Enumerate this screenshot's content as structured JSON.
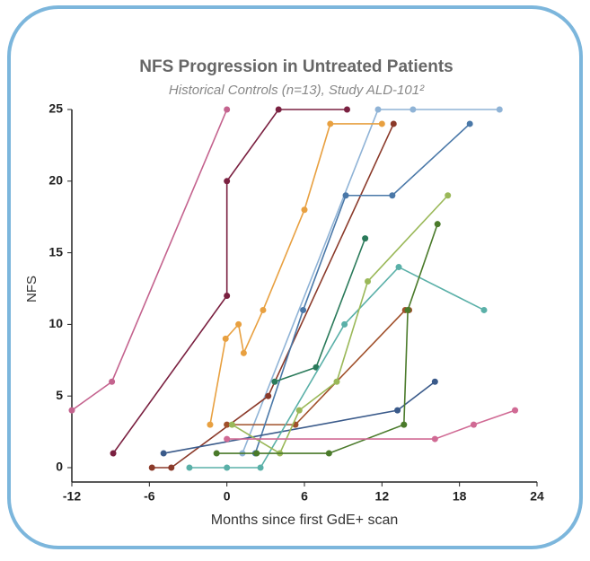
{
  "chart_data": {
    "type": "line",
    "title": "NFS Progression in Untreated Patients",
    "subtitle": "Historical Controls (n=13), Study ALD-101²",
    "x_label": "Months since first GdE+ scan",
    "y_label": "NFS",
    "xlim": [
      -12,
      24
    ],
    "xticks": [
      -12,
      -6,
      0,
      6,
      12,
      18,
      24
    ],
    "ylim": [
      0,
      25
    ],
    "yticks": [
      0,
      5,
      10,
      15,
      20,
      25
    ],
    "series": [
      {
        "color": "#c4638e",
        "x": [
          -12,
          -8.9,
          0
        ],
        "values": [
          4,
          6,
          25
        ]
      },
      {
        "color": "#7a2040",
        "x": [
          -8.8,
          0,
          0,
          4,
          9.3
        ],
        "values": [
          1,
          12,
          20,
          25,
          25
        ]
      },
      {
        "color": "#8fb3d6",
        "x": [
          1.2,
          11.7,
          14.4,
          21.1
        ],
        "values": [
          1,
          25,
          25,
          25
        ]
      },
      {
        "color": "#e8a040",
        "x": [
          -1.3,
          -0.1,
          0.9,
          1.3,
          2.8,
          6,
          8,
          12
        ],
        "values": [
          3,
          9,
          10,
          8,
          11,
          18,
          24,
          24
        ]
      },
      {
        "color": "#8b3a2a",
        "x": [
          -5.8,
          -4.3,
          3.2,
          12.9
        ],
        "values": [
          0,
          0,
          5,
          24
        ]
      },
      {
        "color": "#a0502a",
        "x": [
          0,
          5.3,
          13.8,
          14.1
        ],
        "values": [
          3,
          3,
          11,
          11
        ]
      },
      {
        "color": "#4a78a8",
        "x": [
          2.2,
          5.9,
          9.2,
          12.8,
          18.8
        ],
        "values": [
          1,
          11,
          19,
          19,
          24
        ]
      },
      {
        "color": "#3a5a8a",
        "x": [
          -4.9,
          13.2,
          16.1
        ],
        "values": [
          1,
          4,
          6
        ]
      },
      {
        "color": "#2a7a5a",
        "x": [
          3.7,
          6.9,
          10.7
        ],
        "values": [
          6,
          7,
          16
        ]
      },
      {
        "color": "#5ab0a8",
        "x": [
          -2.9,
          0,
          2.6,
          9.1,
          13.3,
          19.9
        ],
        "values": [
          0,
          0,
          0,
          10,
          14,
          11
        ]
      },
      {
        "color": "#9ab858",
        "x": [
          0.4,
          4.1,
          5.6,
          8.5,
          10.9,
          17.1
        ],
        "values": [
          3,
          1,
          4,
          6,
          13,
          19
        ]
      },
      {
        "color": "#4a7a2a",
        "x": [
          -0.8,
          2.3,
          7.9,
          13.7,
          14,
          16.3
        ],
        "values": [
          1,
          1,
          1,
          3,
          11,
          17
        ]
      },
      {
        "color": "#d06a94",
        "x": [
          0,
          16.1,
          19.1,
          22.3
        ],
        "values": [
          2,
          2,
          3,
          4
        ]
      }
    ]
  }
}
